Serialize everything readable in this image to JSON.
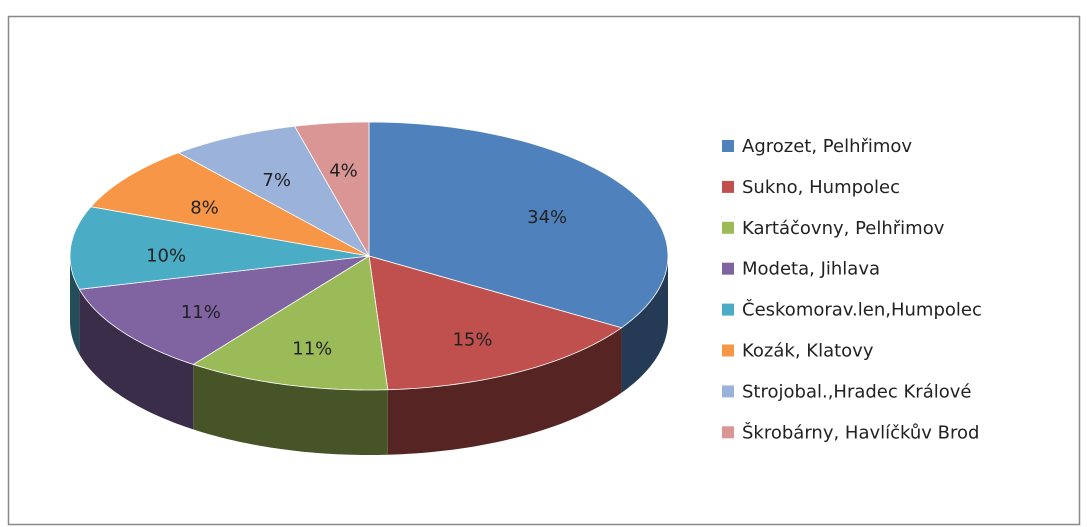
{
  "chart_data": {
    "type": "pie",
    "categories": [
      "Agrozet, Pelhřimov",
      "Sukno, Humpolec",
      "Kartáčovny, Pelhřimov",
      "Modeta, Jihlava",
      "Českomorav.len,Humpolec",
      "Kozák, Klatovy",
      "Strojobal.,Hradec Králové",
      "Škrobárny, Havlíčkův Brod"
    ],
    "values": [
      34,
      15,
      11,
      11,
      10,
      8,
      7,
      4
    ],
    "value_labels": [
      "34%",
      "15%",
      "11%",
      "11%",
      "10%",
      "8%",
      "7%",
      "4%"
    ],
    "colors": [
      "#4f81bd",
      "#c0504d",
      "#9bbb59",
      "#8064a2",
      "#4bacc6",
      "#f79646",
      "#9bb3db",
      "#d99694"
    ],
    "legend": "right"
  }
}
